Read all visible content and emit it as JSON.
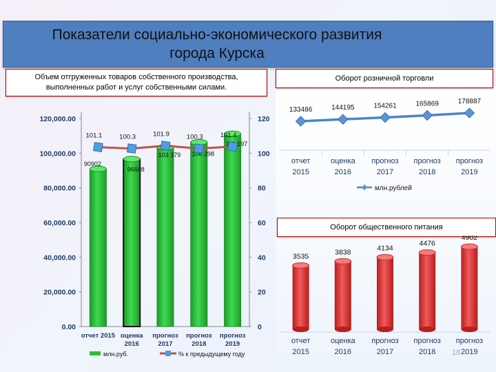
{
  "slide": {
    "title": "Показатели социально-экономического развития\nгорода Курска",
    "page_number": "18"
  },
  "colors": {
    "title_bar": "#4f7fbf",
    "green_bars": "#2bbf3a",
    "pct_line": "#c0504d",
    "pct_marker": "#4f9fe0",
    "retail_line": "#4a86c8",
    "food_bars": "#e04040"
  },
  "chart_data": [
    {
      "type": "bar",
      "title": "Объем отгруженных товаров собственного производства,\nвыполненных работ и услуг собственными силами.",
      "categories": [
        "отчет 2015",
        "оценка 2016",
        "прогноз 2017",
        "прогноз 2018",
        "прогноз 2019"
      ],
      "series": [
        {
          "name": "млн.руб.",
          "values": [
            90902,
            96608,
            103379,
            106298,
            111197
          ],
          "value_labels": [
            "90902",
            "96608",
            "103 379",
            "106 298",
            "111 197"
          ],
          "axis": "left"
        },
        {
          "name": "% к предыдущему году",
          "type": "line",
          "values": [
            101.1,
            100.3,
            101.9,
            100.3,
            101.4
          ],
          "value_labels": [
            "101.1",
            "100.3",
            "101.9",
            "100.3",
            "101.4"
          ],
          "axis": "right"
        }
      ],
      "y_ticks": [
        "0.00",
        "20,000.00",
        "40,000.00",
        "60,000.00",
        "80,000.00",
        "100,000.00",
        "120,000.00"
      ],
      "ylim": [
        0,
        120000
      ],
      "y2_ticks": [
        "0",
        "20",
        "40",
        "60",
        "80",
        "100",
        "120"
      ],
      "y2lim": [
        0,
        120
      ],
      "legend_position": "bottom"
    },
    {
      "type": "line",
      "title": "Оборот розничной торговли",
      "categories": [
        "отчет 2015",
        "оценка 2016",
        "прогноз 2017",
        "прогноз 2018",
        "прогноз 2019"
      ],
      "series": [
        {
          "name": "млн.рублей",
          "values": [
            133486,
            144195,
            154261,
            165869,
            178887
          ]
        }
      ],
      "legend_position": "bottom"
    },
    {
      "type": "bar",
      "title": "Оборот общественного питания",
      "categories": [
        "отчет 2015",
        "оценка 2016",
        "прогноз 2017",
        "прогноз 2018",
        "прогноз 2019"
      ],
      "series": [
        {
          "values": [
            3535,
            3838,
            4134,
            4476,
            4902
          ]
        }
      ]
    }
  ]
}
